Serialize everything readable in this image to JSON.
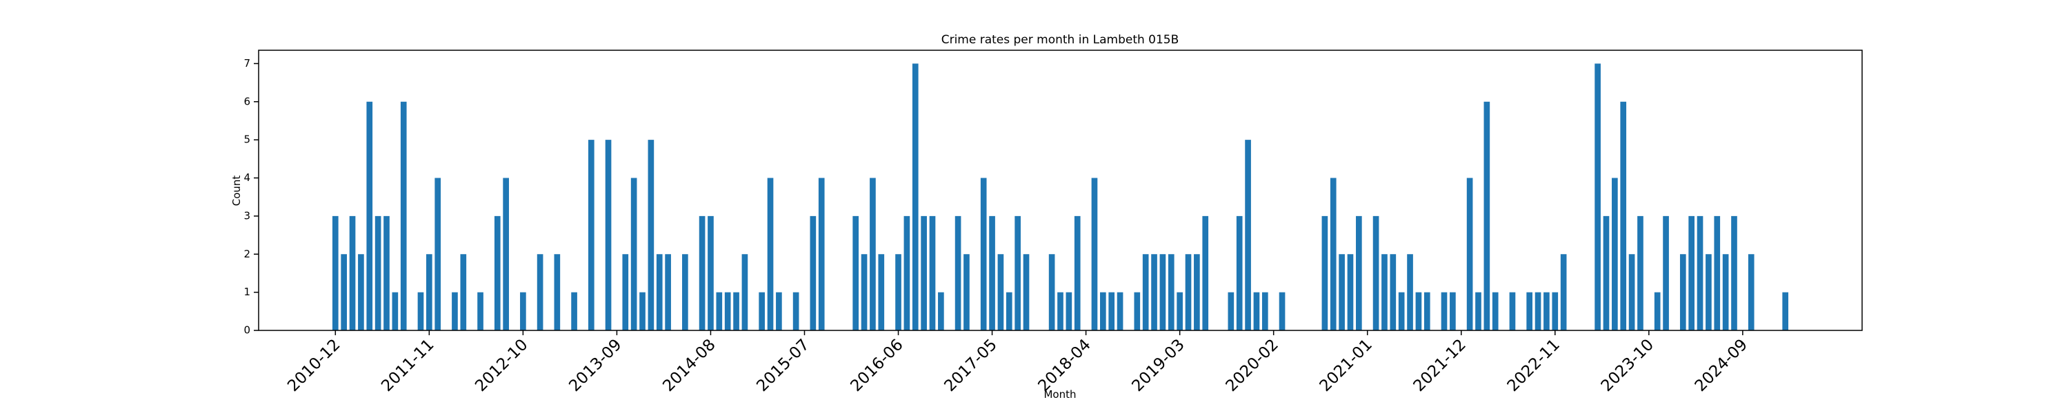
{
  "chart_data": {
    "type": "bar",
    "title": "Crime rates per month in Lambeth 015B",
    "xlabel": "Month",
    "ylabel": "Count",
    "color": "#1f77b4",
    "grid": false,
    "x": [
      "2010-12",
      "2011-01",
      "2011-02",
      "2011-03",
      "2011-04",
      "2011-05",
      "2011-06",
      "2011-07",
      "2011-08",
      "2011-10",
      "2011-11",
      "2011-12",
      "2012-02",
      "2012-03",
      "2012-05",
      "2012-07",
      "2012-08",
      "2012-10",
      "2012-12",
      "2013-02",
      "2013-04",
      "2013-06",
      "2013-08",
      "2013-10",
      "2013-11",
      "2013-12",
      "2014-01",
      "2014-02",
      "2014-03",
      "2014-05",
      "2014-07",
      "2014-08",
      "2014-09",
      "2014-10",
      "2014-11",
      "2014-12",
      "2015-02",
      "2015-03",
      "2015-04",
      "2015-06",
      "2015-08",
      "2015-09",
      "2016-01",
      "2016-02",
      "2016-03",
      "2016-04",
      "2016-06",
      "2016-07",
      "2016-08",
      "2016-09",
      "2016-10",
      "2016-11",
      "2017-01",
      "2017-02",
      "2017-04",
      "2017-05",
      "2017-06",
      "2017-07",
      "2017-08",
      "2017-09",
      "2017-12",
      "2018-01",
      "2018-02",
      "2018-03",
      "2018-05",
      "2018-06",
      "2018-07",
      "2018-08",
      "2018-10",
      "2018-11",
      "2018-12",
      "2019-01",
      "2019-02",
      "2019-03",
      "2019-04",
      "2019-05",
      "2019-06",
      "2019-09",
      "2019-10",
      "2019-11",
      "2019-12",
      "2020-01",
      "2020-03",
      "2020-08",
      "2020-09",
      "2020-10",
      "2020-11",
      "2020-12",
      "2021-02",
      "2021-03",
      "2021-04",
      "2021-05",
      "2021-06",
      "2021-07",
      "2021-08",
      "2021-10",
      "2021-11",
      "2022-01",
      "2022-02",
      "2022-03",
      "2022-04",
      "2022-06",
      "2022-08",
      "2022-09",
      "2022-10",
      "2022-11",
      "2022-12",
      "2023-04",
      "2023-05",
      "2023-06",
      "2023-07",
      "2023-08",
      "2023-09",
      "2023-11",
      "2023-12",
      "2024-02",
      "2024-03",
      "2024-04",
      "2024-05",
      "2024-06",
      "2024-07",
      "2024-08",
      "2024-10",
      "2025-02"
    ],
    "values": [
      3,
      2,
      3,
      2,
      6,
      3,
      3,
      1,
      6,
      1,
      2,
      4,
      1,
      2,
      1,
      3,
      4,
      1,
      2,
      2,
      1,
      5,
      5,
      2,
      4,
      1,
      5,
      2,
      2,
      2,
      3,
      3,
      1,
      1,
      1,
      2,
      1,
      4,
      1,
      1,
      3,
      4,
      3,
      2,
      4,
      2,
      2,
      3,
      7,
      3,
      3,
      1,
      3,
      2,
      4,
      3,
      2,
      1,
      3,
      2,
      2,
      1,
      1,
      3,
      4,
      1,
      1,
      1,
      1,
      2,
      2,
      2,
      2,
      1,
      2,
      2,
      3,
      1,
      3,
      5,
      1,
      1,
      1,
      3,
      4,
      2,
      2,
      3,
      3,
      2,
      2,
      1,
      2,
      1,
      1,
      1,
      1,
      4,
      1,
      6,
      1,
      1,
      1,
      1,
      1,
      1,
      2,
      7,
      3,
      4,
      6,
      2,
      3,
      1,
      3,
      2,
      3,
      3,
      2,
      3,
      2,
      3,
      2,
      1
    ],
    "xlim": [
      "2010-03",
      "2025-11"
    ],
    "xticks": [
      "2010-12",
      "2011-11",
      "2012-10",
      "2013-09",
      "2014-08",
      "2015-07",
      "2016-06",
      "2017-05",
      "2018-04",
      "2019-03",
      "2020-02",
      "2021-01",
      "2021-12",
      "2022-11",
      "2023-10",
      "2024-09"
    ],
    "ylim": [
      0,
      7.35
    ],
    "yticks": [
      0,
      1,
      2,
      3,
      4,
      5,
      6,
      7
    ]
  }
}
